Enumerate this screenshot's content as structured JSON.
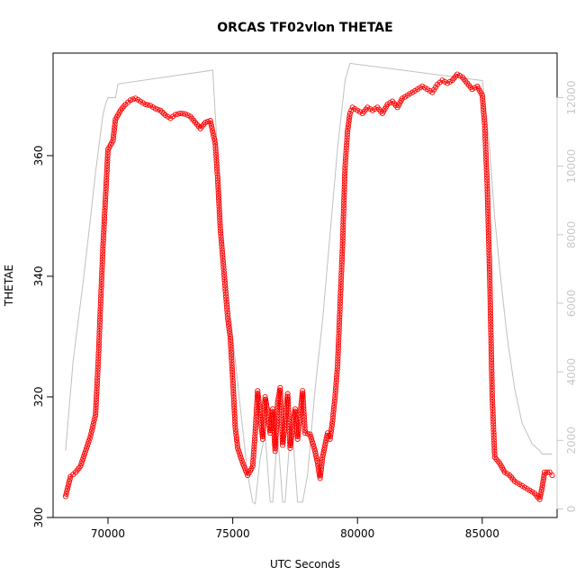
{
  "chart_data": {
    "type": "scatter",
    "title": "ORCAS TF02vlon THETAE",
    "xlabel": "UTC Seconds",
    "ylabel": "THETAE",
    "xlim": [
      67800,
      88000
    ],
    "ylim": [
      300,
      377
    ],
    "x_ticks": [
      70000,
      75000,
      80000,
      85000
    ],
    "y_ticks": [
      300,
      320,
      340,
      360
    ],
    "y2lim": [
      -250,
      13300
    ],
    "y2_ticks": [
      0,
      2000,
      4000,
      6000,
      8000,
      10000,
      12000
    ],
    "grid": false,
    "legend": "none",
    "colors": {
      "thetae": "#ff0000",
      "altitude": "#c0c0c0"
    },
    "series": [
      {
        "marker": "circle",
        "color": "#ff0000",
        "points": [
          [
            68300,
            303.5
          ],
          [
            68500,
            306.8
          ],
          [
            68700,
            307.5
          ],
          [
            68900,
            308.5
          ],
          [
            69100,
            311.0
          ],
          [
            69300,
            313.5
          ],
          [
            69500,
            317.0
          ],
          [
            69600,
            325.0
          ],
          [
            69700,
            335.0
          ],
          [
            69800,
            345.0
          ],
          [
            69900,
            353.0
          ],
          [
            70000,
            361.0
          ],
          [
            70200,
            362.5
          ],
          [
            70300,
            366.0
          ],
          [
            70500,
            367.5
          ],
          [
            70700,
            368.5
          ],
          [
            70900,
            369.2
          ],
          [
            71100,
            369.5
          ],
          [
            71300,
            369.0
          ],
          [
            71500,
            368.5
          ],
          [
            71700,
            368.3
          ],
          [
            71900,
            367.8
          ],
          [
            72100,
            367.5
          ],
          [
            72300,
            366.7
          ],
          [
            72500,
            366.2
          ],
          [
            72700,
            366.8
          ],
          [
            72900,
            367.0
          ],
          [
            73100,
            366.9
          ],
          [
            73300,
            366.5
          ],
          [
            73500,
            365.5
          ],
          [
            73700,
            364.5
          ],
          [
            73900,
            365.5
          ],
          [
            74100,
            365.8
          ],
          [
            74300,
            362.0
          ],
          [
            74400,
            356.0
          ],
          [
            74500,
            348.0
          ],
          [
            74600,
            343.0
          ],
          [
            74700,
            338.0
          ],
          [
            74800,
            333.0
          ],
          [
            74900,
            330.0
          ],
          [
            75000,
            323.0
          ],
          [
            75100,
            315.0
          ],
          [
            75200,
            311.5
          ],
          [
            75400,
            309.0
          ],
          [
            75600,
            307.0
          ],
          [
            75800,
            308.5
          ],
          [
            75900,
            314.0
          ],
          [
            76000,
            321.0
          ],
          [
            76100,
            317.0
          ],
          [
            76200,
            313.0
          ],
          [
            76300,
            320.0
          ],
          [
            76400,
            317.5
          ],
          [
            76500,
            314.0
          ],
          [
            76600,
            318.0
          ],
          [
            76700,
            311.0
          ],
          [
            76800,
            319.0
          ],
          [
            76900,
            321.5
          ],
          [
            77000,
            312.0
          ],
          [
            77100,
            316.0
          ],
          [
            77200,
            320.5
          ],
          [
            77300,
            311.5
          ],
          [
            77400,
            315.0
          ],
          [
            77500,
            318.0
          ],
          [
            77600,
            313.0
          ],
          [
            77700,
            317.0
          ],
          [
            77800,
            321.0
          ],
          [
            77900,
            314.0
          ],
          [
            78100,
            313.8
          ],
          [
            78300,
            311.0
          ],
          [
            78400,
            309.0
          ],
          [
            78500,
            306.5
          ],
          [
            78600,
            310.0
          ],
          [
            78700,
            312.0
          ],
          [
            78800,
            314.0
          ],
          [
            78900,
            313.0
          ],
          [
            79000,
            316.0
          ],
          [
            79100,
            320.0
          ],
          [
            79200,
            325.0
          ],
          [
            79300,
            335.0
          ],
          [
            79400,
            345.0
          ],
          [
            79500,
            358.0
          ],
          [
            79600,
            364.0
          ],
          [
            79700,
            367.0
          ],
          [
            79800,
            368.0
          ],
          [
            80000,
            367.5
          ],
          [
            80200,
            367.0
          ],
          [
            80400,
            368.0
          ],
          [
            80600,
            367.5
          ],
          [
            80800,
            368.0
          ],
          [
            81000,
            367.0
          ],
          [
            81200,
            368.5
          ],
          [
            81400,
            369.0
          ],
          [
            81600,
            368.0
          ],
          [
            81800,
            369.5
          ],
          [
            82000,
            370.0
          ],
          [
            82200,
            370.5
          ],
          [
            82400,
            371.0
          ],
          [
            82600,
            371.5
          ],
          [
            82800,
            371.0
          ],
          [
            83000,
            370.5
          ],
          [
            83200,
            371.8
          ],
          [
            83400,
            372.5
          ],
          [
            83600,
            372.0
          ],
          [
            83800,
            372.5
          ],
          [
            84000,
            373.5
          ],
          [
            84200,
            373.0
          ],
          [
            84400,
            372.0
          ],
          [
            84600,
            371.0
          ],
          [
            84800,
            371.5
          ],
          [
            85000,
            370.0
          ],
          [
            85100,
            365.0
          ],
          [
            85200,
            355.0
          ],
          [
            85300,
            340.0
          ],
          [
            85400,
            320.0
          ],
          [
            85500,
            310.0
          ],
          [
            85700,
            309.0
          ],
          [
            85900,
            307.5
          ],
          [
            86100,
            307.0
          ],
          [
            86300,
            306.0
          ],
          [
            86500,
            305.5
          ],
          [
            86700,
            305.0
          ],
          [
            86900,
            304.5
          ],
          [
            87100,
            304.0
          ],
          [
            87300,
            303.0
          ],
          [
            87400,
            305.0
          ],
          [
            87500,
            307.5
          ],
          [
            87700,
            307.5
          ],
          [
            87800,
            307.0
          ]
        ]
      },
      {
        "marker": "line",
        "color": "#c0c0c0",
        "axis": "right",
        "points": [
          [
            68300,
            1700
          ],
          [
            68600,
            4300
          ],
          [
            69000,
            6600
          ],
          [
            69300,
            8500
          ],
          [
            69500,
            9800
          ],
          [
            69800,
            11500
          ],
          [
            69900,
            11800
          ],
          [
            70000,
            12000
          ],
          [
            70300,
            12000
          ],
          [
            70400,
            12400
          ],
          [
            74200,
            12800
          ],
          [
            74300,
            11500
          ],
          [
            74600,
            8000
          ],
          [
            75000,
            5000
          ],
          [
            75300,
            3000
          ],
          [
            75600,
            1000
          ],
          [
            75800,
            200
          ],
          [
            75900,
            150
          ],
          [
            76100,
            1500
          ],
          [
            76300,
            2200
          ],
          [
            76500,
            200
          ],
          [
            76600,
            200
          ],
          [
            76800,
            2200
          ],
          [
            77000,
            200
          ],
          [
            77100,
            200
          ],
          [
            77300,
            2200
          ],
          [
            77400,
            2200
          ],
          [
            77600,
            200
          ],
          [
            77800,
            200
          ],
          [
            78000,
            1000
          ],
          [
            78300,
            3500
          ],
          [
            78600,
            5500
          ],
          [
            78900,
            8000
          ],
          [
            79200,
            10500
          ],
          [
            79500,
            12500
          ],
          [
            79700,
            13000
          ],
          [
            85000,
            12500
          ],
          [
            85100,
            12000
          ],
          [
            85300,
            10500
          ],
          [
            85500,
            8500
          ],
          [
            85700,
            7000
          ],
          [
            86000,
            5000
          ],
          [
            86300,
            3500
          ],
          [
            86600,
            2500
          ],
          [
            87000,
            1900
          ],
          [
            87300,
            1700
          ],
          [
            87400,
            1600
          ],
          [
            87600,
            1600
          ],
          [
            87800,
            1600
          ]
        ]
      }
    ]
  }
}
